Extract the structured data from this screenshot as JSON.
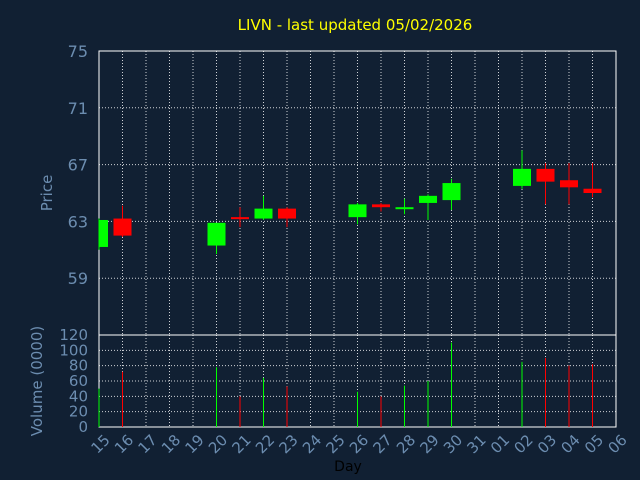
{
  "chart_data": {
    "type": "candlestick",
    "title": "LIVN - last updated 05/02/2026",
    "ylabel": "Price",
    "volume_label": "Volume (0000)",
    "xlabel": "Day",
    "price_ylim": [
      55,
      75
    ],
    "price_ticks": [
      "75",
      "71",
      "67",
      "63",
      "59"
    ],
    "volume_ylim": [
      0,
      120
    ],
    "volume_ticks": [
      "120",
      "100",
      "80",
      "60",
      "40",
      "20",
      "0"
    ],
    "x_ticks": [
      "15",
      "16",
      "17",
      "18",
      "19",
      "20",
      "21",
      "22",
      "23",
      "24",
      "25",
      "26",
      "27",
      "28",
      "29",
      "30",
      "31",
      "01",
      "02",
      "03",
      "04",
      "05",
      "06"
    ],
    "grid": true,
    "colors": {
      "background": "#112033",
      "up": "#00ff00",
      "down": "#ff0000",
      "grid": "#ffffff",
      "title": "#ffff00",
      "axis_text": "#6c8db0"
    },
    "candles": [
      {
        "day": "15",
        "open": 61.2,
        "close": 63.1,
        "high": 63.2,
        "low": 61.0,
        "volume": 50
      },
      {
        "day": "16",
        "open": 63.2,
        "close": 62.0,
        "high": 64.1,
        "low": 61.9,
        "volume": 72
      },
      {
        "day": "20",
        "open": 61.3,
        "close": 62.9,
        "high": 62.9,
        "low": 60.7,
        "volume": 78
      },
      {
        "day": "21",
        "open": 63.3,
        "close": 63.2,
        "high": 64.0,
        "low": 62.6,
        "volume": 40
      },
      {
        "day": "22",
        "open": 63.2,
        "close": 63.9,
        "high": 64.8,
        "low": 63.1,
        "volume": 64
      },
      {
        "day": "23",
        "open": 63.9,
        "close": 63.2,
        "high": 64.0,
        "low": 62.6,
        "volume": 53
      },
      {
        "day": "26",
        "open": 63.3,
        "close": 64.2,
        "high": 64.3,
        "low": 62.8,
        "volume": 46
      },
      {
        "day": "27",
        "open": 64.2,
        "close": 64.0,
        "high": 64.3,
        "low": 63.7,
        "volume": 40
      },
      {
        "day": "28",
        "open": 63.9,
        "close": 64.0,
        "high": 64.6,
        "low": 63.5,
        "volume": 54
      },
      {
        "day": "29",
        "open": 64.3,
        "close": 64.8,
        "high": 64.9,
        "low": 63.1,
        "volume": 60
      },
      {
        "day": "30",
        "open": 64.5,
        "close": 65.7,
        "high": 66.0,
        "low": 63.8,
        "volume": 110
      },
      {
        "day": "02",
        "open": 65.5,
        "close": 66.7,
        "high": 68.0,
        "low": 65.3,
        "volume": 85
      },
      {
        "day": "03",
        "open": 66.7,
        "close": 65.8,
        "high": 67.1,
        "low": 64.2,
        "volume": 90
      },
      {
        "day": "04",
        "open": 65.9,
        "close": 65.4,
        "high": 67.1,
        "low": 64.2,
        "volume": 80
      },
      {
        "day": "05",
        "open": 65.3,
        "close": 65.0,
        "high": 67.1,
        "low": 64.7,
        "volume": 82
      }
    ]
  }
}
